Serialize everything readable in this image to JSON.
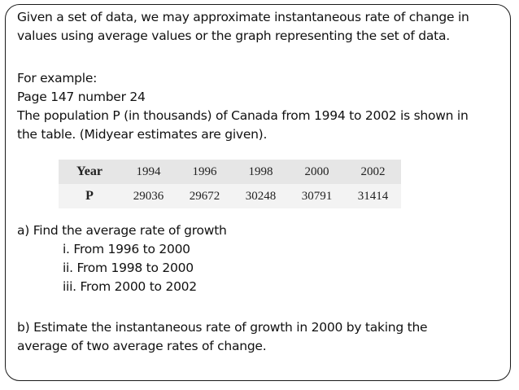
{
  "intro": {
    "lines": [
      "Given a set of data, we may approximate instantaneous rate of change in",
      "values using average values or the graph representing the set of data."
    ]
  },
  "example": {
    "lines": [
      "For example:",
      "Page 147 number 24",
      "The population P (in thousands) of Canada from 1994 to 2002 is shown in",
      "the table. (Midyear estimates are given)."
    ]
  },
  "table": {
    "rows": [
      {
        "header": "Year",
        "cells": [
          "1994",
          "1996",
          "1998",
          "2000",
          "2002"
        ]
      },
      {
        "header": "P",
        "cells": [
          "29036",
          "29672",
          "30248",
          "30791",
          "31414"
        ]
      }
    ]
  },
  "part_a": {
    "title": "a) Find the average rate of growth",
    "items": [
      "i.  From 1996 to 2000",
      "ii. From 1998 to 2000",
      "iii. From 2000 to 2002"
    ]
  },
  "part_b": {
    "lines": [
      "b) Estimate the instantaneous rate of growth in 2000 by taking the",
      "average of two average rates of change."
    ]
  }
}
